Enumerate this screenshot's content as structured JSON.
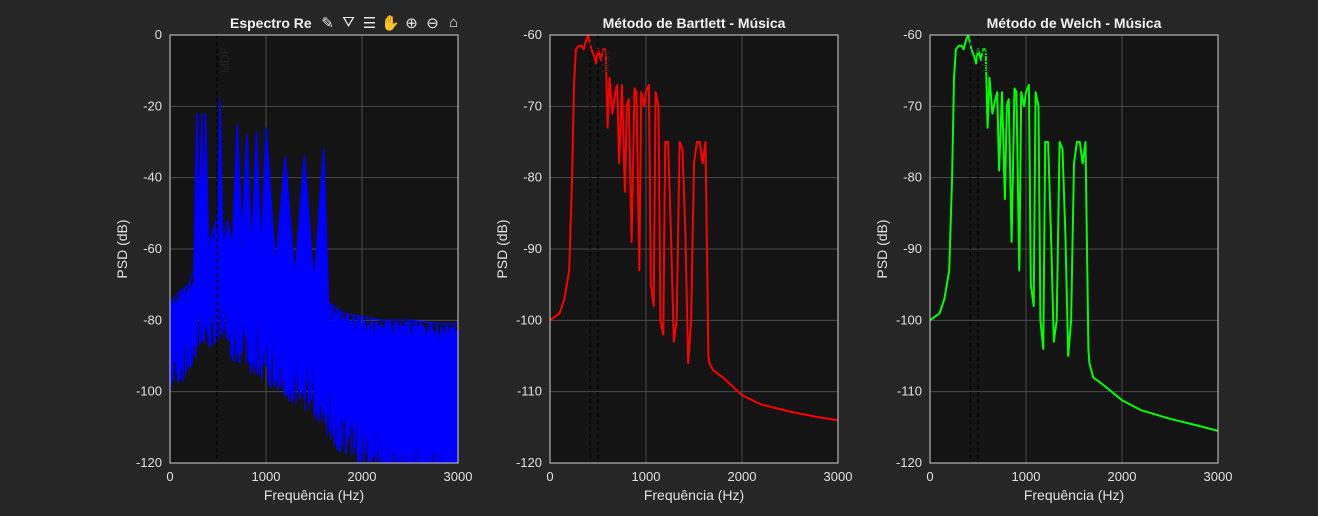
{
  "colors": {
    "background": "#262626",
    "axes_bg": "#141414",
    "grid": "#4a4a4a",
    "axis": "#d0d0d0",
    "ch1": "#0000ff",
    "ch2": "#ff0000",
    "ch3": "#00ff00"
  },
  "toolbar": {
    "icons": [
      "edit-icon",
      "brush-icon",
      "legend-icon",
      "pan-icon",
      "zoom-in-icon",
      "zoom-out-icon",
      "home-icon"
    ]
  },
  "chart_data": [
    {
      "type": "line",
      "title": "Espectro Re",
      "xlabel": "Frequência (Hz)",
      "ylabel": "PSD (dB)",
      "xlim": [
        0,
        3000
      ],
      "ylim": [
        -120,
        0
      ],
      "xticks": [
        "0",
        "1000",
        "2000",
        "3000"
      ],
      "yticks": [
        "-120",
        "-100",
        "-80",
        "-60",
        "-40",
        "-20",
        "0"
      ],
      "grid": true,
      "annotation": "MDF",
      "vlines": [
        490
      ],
      "series": [
        {
          "color": "#0000ff",
          "x": [
            0,
            100,
            200,
            250,
            280,
            300,
            330,
            350,
            370,
            400,
            450,
            500,
            520,
            550,
            600,
            650,
            700,
            750,
            800,
            850,
            900,
            950,
            1000,
            1100,
            1200,
            1300,
            1400,
            1500,
            1600,
            1650,
            1700,
            1800,
            2000,
            2200,
            2500,
            2800,
            3000
          ],
          "y": [
            -75,
            -72,
            -70,
            -66,
            -22,
            -55,
            -22,
            -55,
            -22,
            -58,
            -55,
            -50,
            -18,
            -58,
            -52,
            -60,
            -25,
            -58,
            -28,
            -62,
            -27,
            -62,
            -26,
            -65,
            -34,
            -68,
            -34,
            -70,
            -32,
            -75,
            -76,
            -78,
            -79,
            -80,
            -80,
            -81,
            -81
          ],
          "noise_bottom": [
            -82,
            -80,
            -78,
            -74,
            -72,
            -70,
            -68,
            -70,
            -70,
            -72,
            -70,
            -68,
            -70,
            -70,
            -72,
            -74,
            -74,
            -76,
            -76,
            -78,
            -78,
            -80,
            -80,
            -82,
            -84,
            -86,
            -88,
            -90,
            -92,
            -96,
            -98,
            -100,
            -104,
            -106,
            -108,
            -109,
            -110
          ]
        }
      ]
    },
    {
      "type": "line",
      "title": "Método de Bartlett - Música",
      "xlabel": "Frequência (Hz)",
      "ylabel": "PSD (dB)",
      "xlim": [
        0,
        3000
      ],
      "ylim": [
        -120,
        -60
      ],
      "xticks": [
        "0",
        "1000",
        "2000",
        "3000"
      ],
      "yticks": [
        "-120",
        "-110",
        "-100",
        "-90",
        "-80",
        "-70",
        "-60"
      ],
      "grid": true,
      "annotation": "MDF",
      "vlines": [
        420,
        500
      ],
      "series": [
        {
          "color": "#ff0000",
          "x": [
            0,
            50,
            100,
            150,
            200,
            230,
            250,
            270,
            300,
            330,
            350,
            380,
            400,
            430,
            460,
            480,
            500,
            530,
            550,
            580,
            600,
            620,
            650,
            680,
            700,
            720,
            750,
            780,
            800,
            820,
            850,
            880,
            900,
            930,
            950,
            980,
            1000,
            1030,
            1050,
            1080,
            1100,
            1130,
            1150,
            1180,
            1200,
            1230,
            1260,
            1290,
            1320,
            1350,
            1380,
            1410,
            1440,
            1470,
            1500,
            1530,
            1560,
            1590,
            1620,
            1650,
            1660,
            1700,
            1800,
            2000,
            2200,
            2500,
            2800,
            3000
          ],
          "y": [
            -100,
            -99.5,
            -99,
            -97,
            -93,
            -80,
            -67,
            -62,
            -61.5,
            -61.5,
            -62,
            -60.5,
            -60,
            -62,
            -63,
            -64,
            -62,
            -63.5,
            -62,
            -62,
            -73,
            -66,
            -71,
            -68,
            -67,
            -78,
            -67,
            -82,
            -70,
            -69,
            -89,
            -67.5,
            -68,
            -93,
            -68,
            -70,
            -68,
            -67,
            -95,
            -98,
            -68,
            -70,
            -100,
            -102,
            -75,
            -75,
            -88,
            -103,
            -100,
            -75,
            -76,
            -88,
            -106,
            -100,
            -78,
            -75,
            -75,
            -78,
            -75,
            -105,
            -106,
            -107,
            -108,
            -110.5,
            -111.8,
            -112.8,
            -113.6,
            -114
          ]
        }
      ]
    },
    {
      "type": "line",
      "title": "Método de Welch - Música",
      "xlabel": "Frequência (Hz)",
      "ylabel": "PSD (dB)",
      "xlim": [
        0,
        3000
      ],
      "ylim": [
        -120,
        -60
      ],
      "xticks": [
        "0",
        "1000",
        "2000",
        "3000"
      ],
      "yticks": [
        "-120",
        "-110",
        "-100",
        "-90",
        "-80",
        "-70",
        "-60"
      ],
      "grid": true,
      "annotation": "MDF",
      "vlines": [
        420,
        500
      ],
      "series": [
        {
          "color": "#00ff00",
          "x": [
            0,
            50,
            100,
            150,
            200,
            230,
            250,
            270,
            300,
            330,
            350,
            380,
            400,
            430,
            460,
            480,
            500,
            530,
            550,
            580,
            600,
            620,
            650,
            680,
            700,
            720,
            750,
            780,
            800,
            820,
            850,
            880,
            900,
            930,
            950,
            980,
            1000,
            1030,
            1050,
            1080,
            1100,
            1130,
            1150,
            1180,
            1200,
            1230,
            1260,
            1290,
            1320,
            1350,
            1380,
            1410,
            1440,
            1470,
            1500,
            1530,
            1560,
            1590,
            1620,
            1650,
            1660,
            1700,
            1800,
            2000,
            2200,
            2500,
            2800,
            3000
          ],
          "y": [
            -100,
            -99.5,
            -99,
            -97,
            -93,
            -80,
            -66,
            -62,
            -61.5,
            -61.5,
            -62,
            -60.5,
            -60,
            -62,
            -63,
            -64,
            -62,
            -63.5,
            -62,
            -62,
            -73,
            -66,
            -71,
            -69,
            -68,
            -79,
            -68,
            -83,
            -70,
            -69,
            -89,
            -67.5,
            -68,
            -93,
            -68,
            -70,
            -68,
            -67,
            -95,
            -98,
            -68,
            -70,
            -100,
            -104,
            -75,
            -75,
            -88,
            -103,
            -100,
            -75,
            -76,
            -88,
            -105,
            -100,
            -78,
            -75,
            -75,
            -78,
            -75,
            -104,
            -106,
            -108,
            -109,
            -111.2,
            -112.6,
            -113.8,
            -114.8,
            -115.5
          ]
        }
      ]
    }
  ]
}
